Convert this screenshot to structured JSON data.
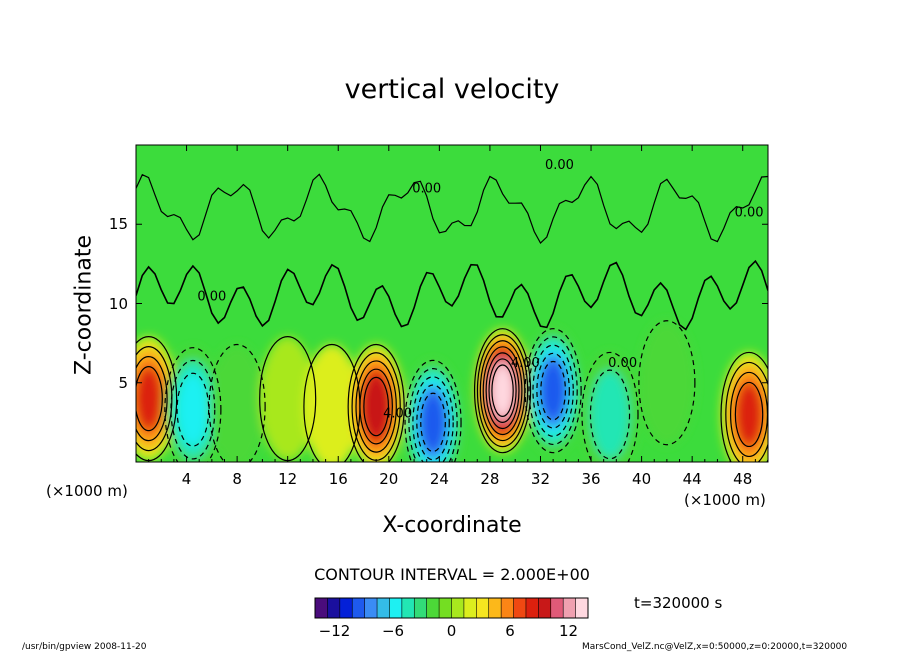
{
  "chart_data": {
    "type": "heatmap",
    "title": "vertical velocity",
    "xlabel": "X-coordinate",
    "ylabel": "Z-coordinate",
    "x_unit_left": "(×1000 m)",
    "x_unit_right": "(×1000 m)",
    "xlim": [
      0,
      50
    ],
    "ylim": [
      0,
      20
    ],
    "x_ticks": [
      "4",
      "8",
      "12",
      "16",
      "20",
      "24",
      "28",
      "32",
      "36",
      "40",
      "44",
      "48"
    ],
    "y_ticks": [
      "5",
      "10",
      "15"
    ],
    "contour_interval_text": "CONTOUR INTERVAL = 2.000E+00",
    "contour_labels": [
      "0.00",
      "0.00",
      "0.00",
      "0.00",
      "4.00",
      "4.00",
      "0.00"
    ],
    "colorbar": {
      "min": -14,
      "max": 14,
      "ticks": [
        "−12",
        "−6",
        "0",
        "6",
        "12"
      ]
    },
    "cells": [
      {
        "x": 1,
        "z": 4,
        "w": 8
      },
      {
        "x": 4.5,
        "z": 3.3,
        "w": -6
      },
      {
        "x": 8,
        "z": 3.5,
        "w": -1
      },
      {
        "x": 12,
        "z": 4,
        "w": 0
      },
      {
        "x": 15.5,
        "z": 3.5,
        "w": 1
      },
      {
        "x": 19,
        "z": 3.5,
        "w": 9
      },
      {
        "x": 23.5,
        "z": 2.5,
        "w": -9
      },
      {
        "x": 29,
        "z": 4.5,
        "w": 13
      },
      {
        "x": 33,
        "z": 4.5,
        "w": -10
      },
      {
        "x": 37.5,
        "z": 3,
        "w": -4
      },
      {
        "x": 42,
        "z": 5,
        "w": -2
      },
      {
        "x": 48.5,
        "z": 3,
        "w": 8
      }
    ],
    "time_label": "t=320000 s",
    "footer_left": "/usr/bin/gpview  2008-11-20",
    "footer_right": "MarsCond_VelZ.nc@VelZ,x=0:50000,z=0:20000,t=320000"
  },
  "colors": {
    "palette": [
      "#4a0c7c",
      "#1a0f9e",
      "#0420d8",
      "#1e5aee",
      "#3a8cf5",
      "#34bce8",
      "#1ef0f2",
      "#22e6b4",
      "#32dc78",
      "#4cd838",
      "#74de22",
      "#a8e81e",
      "#dcee1e",
      "#f6e620",
      "#fcb81a",
      "#fb8516",
      "#f04812",
      "#dc200e",
      "#c81818",
      "#e05a78",
      "#f0a0b0",
      "#ffd8e0"
    ],
    "background": "#3cdc3c"
  }
}
